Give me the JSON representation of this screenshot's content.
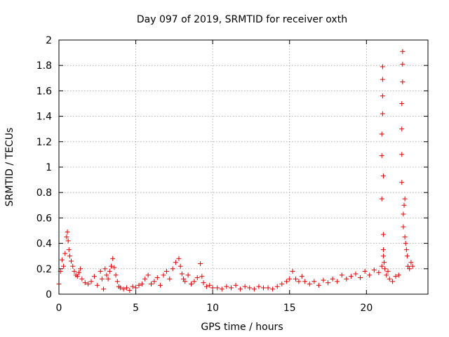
{
  "chart_data": {
    "type": "scatter",
    "title": "Day 097 of 2019, SRMTID for receiver oxth",
    "xlabel": "GPS time / hours",
    "ylabel": "SRMTID / TECUs",
    "xlim": [
      0,
      24
    ],
    "ylim": [
      0,
      2
    ],
    "grid": true,
    "marker": "+",
    "color": "#e00000",
    "x_ticks": [
      0,
      5,
      10,
      15,
      20
    ],
    "x_tick_labels": [
      "0",
      "5",
      "10",
      "15",
      "20"
    ],
    "y_ticks": [
      0,
      0.2,
      0.4,
      0.6,
      0.8,
      1.0,
      1.2,
      1.4,
      1.6,
      1.8,
      2.0
    ],
    "y_tick_labels": [
      "0",
      "0.2",
      "0.4",
      "0.6",
      "0.8",
      "1",
      "1.2",
      "1.4",
      "1.6",
      "1.8",
      "2"
    ],
    "series": [
      {
        "name": "SRMTID",
        "x": [
          0.0,
          0.1,
          0.2,
          0.3,
          0.4,
          0.5,
          0.55,
          0.6,
          0.65,
          0.7,
          0.8,
          0.9,
          1.0,
          1.1,
          1.2,
          1.3,
          1.4,
          1.5,
          1.7,
          1.9,
          2.1,
          2.3,
          2.5,
          2.7,
          2.8,
          2.9,
          3.0,
          3.1,
          3.2,
          3.3,
          3.4,
          3.5,
          3.6,
          3.7,
          3.8,
          3.9,
          4.0,
          4.2,
          4.4,
          4.6,
          4.8,
          5.0,
          5.2,
          5.4,
          5.6,
          5.8,
          6.0,
          6.2,
          6.4,
          6.6,
          6.8,
          7.0,
          7.2,
          7.4,
          7.6,
          7.8,
          7.9,
          8.0,
          8.1,
          8.2,
          8.4,
          8.6,
          8.8,
          9.0,
          9.2,
          9.3,
          9.4,
          9.6,
          9.8,
          10.0,
          10.3,
          10.6,
          10.9,
          11.2,
          11.5,
          11.8,
          12.1,
          12.4,
          12.7,
          13.0,
          13.3,
          13.6,
          13.9,
          14.2,
          14.5,
          14.8,
          15.0,
          15.2,
          15.4,
          15.6,
          15.8,
          16.0,
          16.3,
          16.6,
          16.9,
          17.2,
          17.5,
          17.8,
          18.1,
          18.4,
          18.7,
          19.0,
          19.3,
          19.6,
          19.9,
          20.2,
          20.5,
          20.8,
          21.0,
          21.0,
          21.0,
          21.0,
          21.05,
          21.05,
          21.05,
          21.05,
          21.1,
          21.1,
          21.1,
          21.1,
          21.15,
          21.2,
          21.3,
          21.4,
          21.5,
          21.7,
          21.9,
          22.1,
          22.3,
          22.3,
          22.3,
          22.3,
          22.35,
          22.35,
          22.35,
          22.4,
          22.4,
          22.45,
          22.5,
          22.5,
          22.55,
          22.6,
          22.65,
          22.7,
          22.8,
          22.9,
          23.0
        ],
        "y": [
          0.08,
          0.18,
          0.27,
          0.22,
          0.32,
          0.45,
          0.49,
          0.42,
          0.35,
          0.3,
          0.26,
          0.22,
          0.18,
          0.15,
          0.14,
          0.17,
          0.2,
          0.12,
          0.09,
          0.08,
          0.1,
          0.14,
          0.07,
          0.18,
          0.12,
          0.04,
          0.2,
          0.15,
          0.12,
          0.18,
          0.22,
          0.28,
          0.21,
          0.15,
          0.1,
          0.06,
          0.05,
          0.04,
          0.05,
          0.03,
          0.06,
          0.05,
          0.07,
          0.08,
          0.12,
          0.15,
          0.08,
          0.1,
          0.13,
          0.07,
          0.15,
          0.18,
          0.12,
          0.2,
          0.25,
          0.28,
          0.22,
          0.16,
          0.12,
          0.1,
          0.15,
          0.08,
          0.1,
          0.13,
          0.24,
          0.14,
          0.09,
          0.06,
          0.07,
          0.05,
          0.05,
          0.04,
          0.06,
          0.05,
          0.07,
          0.04,
          0.06,
          0.05,
          0.04,
          0.06,
          0.05,
          0.05,
          0.04,
          0.06,
          0.08,
          0.1,
          0.12,
          0.18,
          0.12,
          0.1,
          0.14,
          0.1,
          0.08,
          0.1,
          0.07,
          0.11,
          0.09,
          0.12,
          0.1,
          0.15,
          0.12,
          0.14,
          0.16,
          0.13,
          0.18,
          0.15,
          0.19,
          0.17,
          0.22,
          0.75,
          1.09,
          1.26,
          1.42,
          1.56,
          1.69,
          1.79,
          0.47,
          0.93,
          0.35,
          0.3,
          0.25,
          0.2,
          0.15,
          0.18,
          0.12,
          0.1,
          0.14,
          0.15,
          0.88,
          1.1,
          1.3,
          1.5,
          1.67,
          1.81,
          1.91,
          0.53,
          0.63,
          0.7,
          0.75,
          0.45,
          0.4,
          0.35,
          0.3,
          0.22,
          0.2,
          0.25,
          0.22
        ]
      }
    ]
  }
}
